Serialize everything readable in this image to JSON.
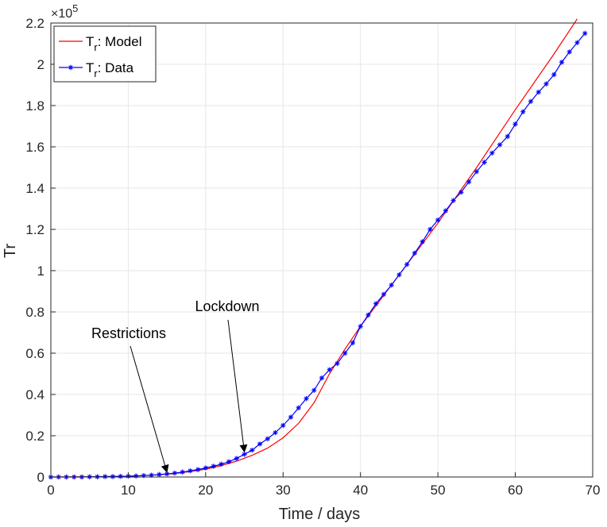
{
  "chart_data": {
    "type": "line",
    "xlabel": "Time / days",
    "ylabel": "Tr",
    "xlim": [
      0,
      70
    ],
    "ylim": [
      0,
      2.2
    ],
    "y_multiplier_label": "×10",
    "y_multiplier_exp": "5",
    "grid": true,
    "legend_position": "top-left",
    "x_ticks": [
      0,
      10,
      20,
      30,
      40,
      50,
      60,
      70
    ],
    "y_ticks": [
      0,
      0.2,
      0.4,
      0.6,
      0.8,
      1,
      1.2,
      1.4,
      1.6,
      1.8,
      2,
      2.2
    ],
    "series": [
      {
        "name": "Model",
        "legend_sub": "r",
        "legend_prefix": "T",
        "color": "#ff0000",
        "marker": "none",
        "x": [
          0,
          5,
          10,
          12,
          14,
          16,
          18,
          20,
          22,
          24,
          26,
          28,
          30,
          32,
          34,
          36,
          38,
          40,
          45,
          50,
          55,
          60,
          65,
          68
        ],
        "y": [
          0,
          0.001,
          0.004,
          0.007,
          0.011,
          0.017,
          0.026,
          0.038,
          0.055,
          0.077,
          0.105,
          0.14,
          0.19,
          0.26,
          0.36,
          0.5,
          0.62,
          0.73,
          0.98,
          1.23,
          1.5,
          1.78,
          2.05,
          2.22
        ]
      },
      {
        "name": "Data",
        "legend_sub": "r",
        "legend_prefix": "T",
        "color": "#0000ff",
        "marker": "star",
        "x": [
          0,
          1,
          2,
          3,
          4,
          5,
          6,
          7,
          8,
          9,
          10,
          11,
          12,
          13,
          14,
          15,
          16,
          17,
          18,
          19,
          20,
          21,
          22,
          23,
          24,
          25,
          26,
          27,
          28,
          29,
          30,
          31,
          32,
          33,
          34,
          35,
          36,
          37,
          38,
          39,
          40,
          41,
          42,
          43,
          44,
          45,
          46,
          47,
          48,
          49,
          50,
          51,
          52,
          53,
          54,
          55,
          56,
          57,
          58,
          59,
          60,
          61,
          62,
          63,
          64,
          65,
          66,
          67,
          68,
          69
        ],
        "y": [
          0,
          0,
          0,
          0,
          0,
          0.001,
          0.001,
          0.002,
          0.002,
          0.003,
          0.004,
          0.005,
          0.007,
          0.009,
          0.012,
          0.015,
          0.019,
          0.024,
          0.03,
          0.036,
          0.044,
          0.052,
          0.062,
          0.074,
          0.09,
          0.11,
          0.13,
          0.16,
          0.185,
          0.215,
          0.25,
          0.29,
          0.335,
          0.38,
          0.42,
          0.48,
          0.52,
          0.55,
          0.6,
          0.65,
          0.73,
          0.785,
          0.84,
          0.885,
          0.93,
          0.98,
          1.03,
          1.085,
          1.14,
          1.2,
          1.245,
          1.29,
          1.34,
          1.38,
          1.43,
          1.48,
          1.525,
          1.57,
          1.61,
          1.65,
          1.71,
          1.77,
          1.82,
          1.865,
          1.905,
          1.95,
          2.01,
          2.06,
          2.105,
          2.15
        ]
      }
    ],
    "annotations": [
      {
        "text": "Restrictions",
        "arrow_to_x": 15,
        "arrow_to_y": 0.012
      },
      {
        "text": "Lockdown",
        "arrow_to_x": 25,
        "arrow_to_y": 0.11
      }
    ]
  }
}
